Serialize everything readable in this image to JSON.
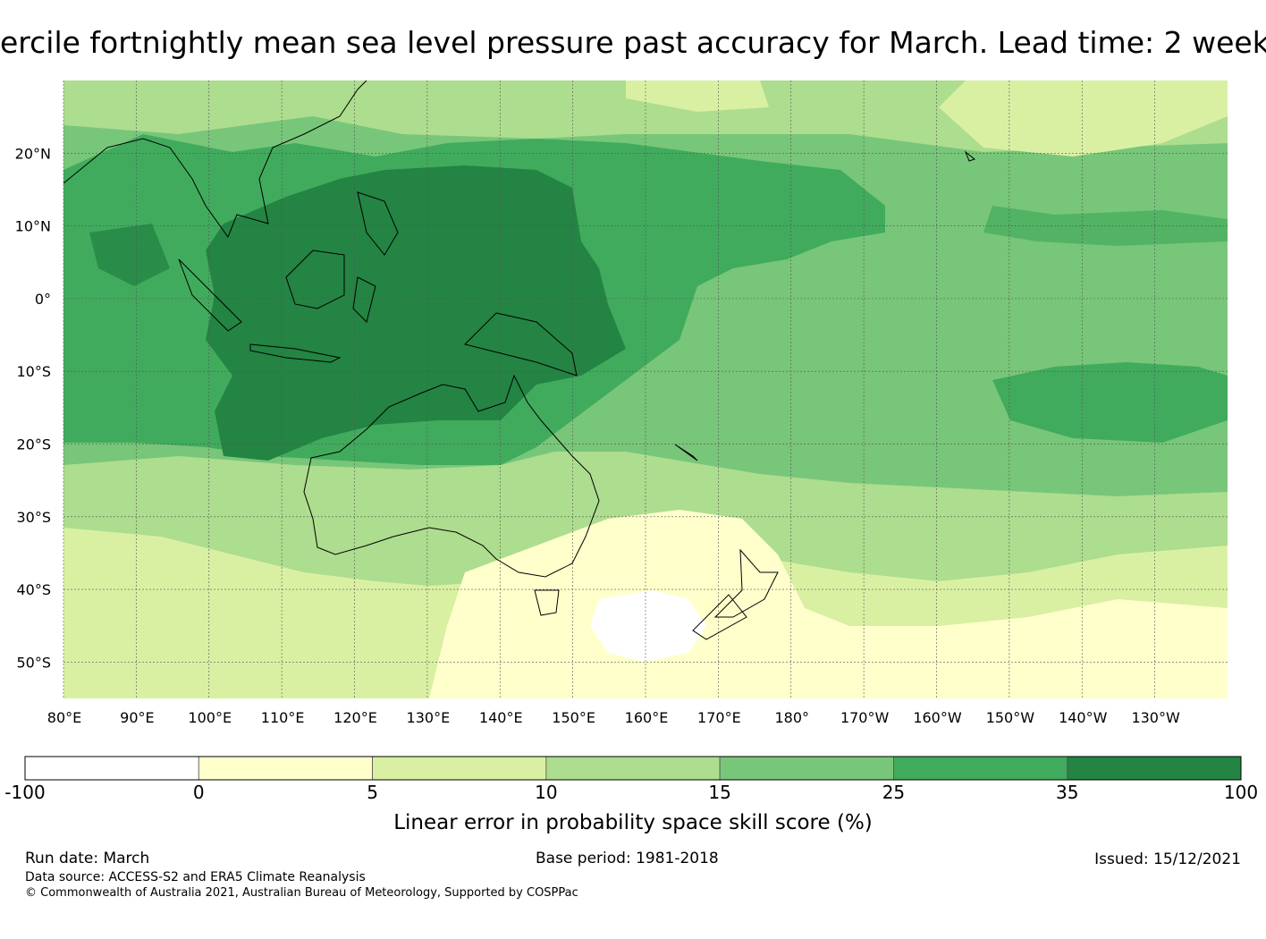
{
  "title": "ercile fortnightly mean sea level pressure past accuracy for March. Lead time: 2 week",
  "map": {
    "lat_labels": [
      "20°N",
      "10°N",
      "0°",
      "10°S",
      "20°S",
      "30°S",
      "40°S",
      "50°S"
    ],
    "lat_values": [
      20,
      10,
      0,
      -10,
      -20,
      -30,
      -40,
      -50
    ],
    "lon_labels": [
      "80°E",
      "90°E",
      "100°E",
      "110°E",
      "120°E",
      "130°E",
      "140°E",
      "150°E",
      "160°E",
      "170°E",
      "180°",
      "170°W",
      "160°W",
      "150°W",
      "140°W",
      "130°W"
    ],
    "lon_values": [
      80,
      90,
      100,
      110,
      120,
      130,
      140,
      150,
      160,
      170,
      180,
      190,
      200,
      210,
      220,
      230
    ],
    "lon_range": [
      80,
      240
    ],
    "lat_range": [
      -55,
      30
    ]
  },
  "colorbar": {
    "bounds": [
      "-100",
      "0",
      "5",
      "10",
      "15",
      "25",
      "35",
      "100"
    ],
    "colors": [
      "#ffffff",
      "#ffffcc",
      "#d9f0a3",
      "#addd8e",
      "#78c679",
      "#41ab5d",
      "#238443"
    ],
    "label": "Linear error in probability space skill score (%)"
  },
  "footer": {
    "run_date": "Run date: March",
    "base_period": "Base period: 1981-2018",
    "issued": "Issued: 15/12/2021",
    "data_source": "Data source: ACCESS-S2 and ERA5 Climate Reanalysis",
    "copyright": "© Commonwealth of Australia 2021, Australian Bureau of Meteorology, Supported by COSPPac"
  }
}
